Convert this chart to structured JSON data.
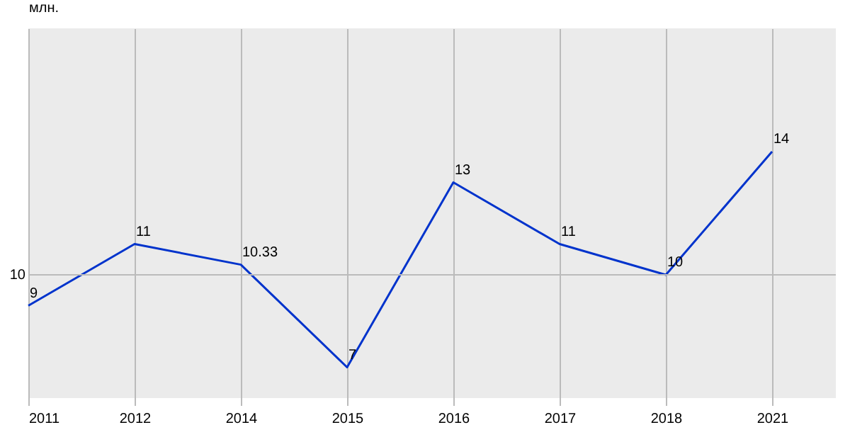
{
  "chart_data": {
    "type": "line",
    "ylabel": "млн.",
    "categories": [
      "2011",
      "2012",
      "2014",
      "2015",
      "2016",
      "2017",
      "2018",
      "2021"
    ],
    "series": [
      {
        "color": "#0033cc",
        "values": [
          9,
          11,
          10.33,
          7,
          13,
          11,
          10,
          14
        ]
      }
    ],
    "ylim": [
      6,
      18
    ],
    "ref_lines": [
      {
        "axis": "y",
        "value": 10,
        "label": "10",
        "color": "#bbbbbb"
      }
    ],
    "grid": true,
    "data_labels": true,
    "marker": "none",
    "line_style": "solid"
  }
}
